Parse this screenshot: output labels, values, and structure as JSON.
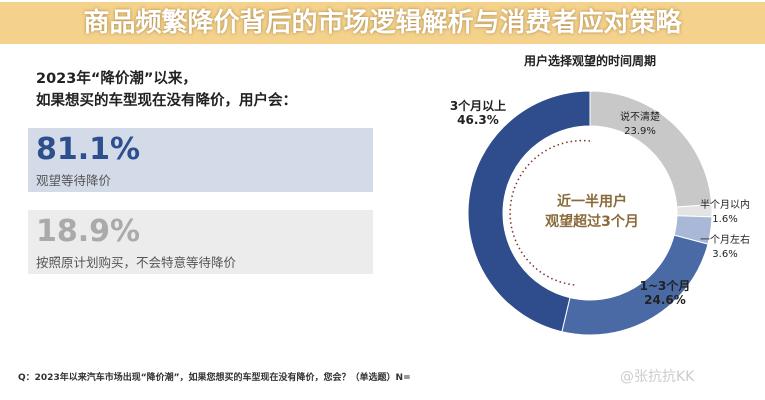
{
  "left": {
    "title_line1": "2023年“降价潮”以来，",
    "title_line2": "如果想买的车型现在没有降价，用户会：",
    "options": [
      {
        "value": "81.1%",
        "label": "观望等待降价"
      },
      {
        "value": "18.9%",
        "label": "按照原计划购买，不会特意等待降价"
      }
    ]
  },
  "footnote": "Q：2023年以来汽车市场出现“降价潮”，如果您想买的车型现在没有降价，您会？（单选题）N=",
  "watermark": "@张抗抗KK",
  "banner": {
    "title": "商品频繁降价背后的市场逻辑解析与消费者应对策略"
  },
  "chart_data": {
    "type": "pie",
    "title": "用户选择观望的时间周期",
    "donut": true,
    "center_label": [
      "近一半用户",
      "观望超过3个月"
    ],
    "slices": [
      {
        "label": "说不清楚",
        "value": 23.9,
        "color": "#c8c8c8"
      },
      {
        "label": "半个月以内",
        "value": 1.6,
        "color": "#e4e4e4"
      },
      {
        "label": "一个月左右",
        "value": 3.6,
        "color": "#a9b8d6"
      },
      {
        "label": "1~3个月",
        "value": 24.6,
        "color": "#4a6aa5"
      },
      {
        "label": "3个月以上",
        "value": 46.3,
        "color": "#2f4c8c"
      }
    ]
  }
}
